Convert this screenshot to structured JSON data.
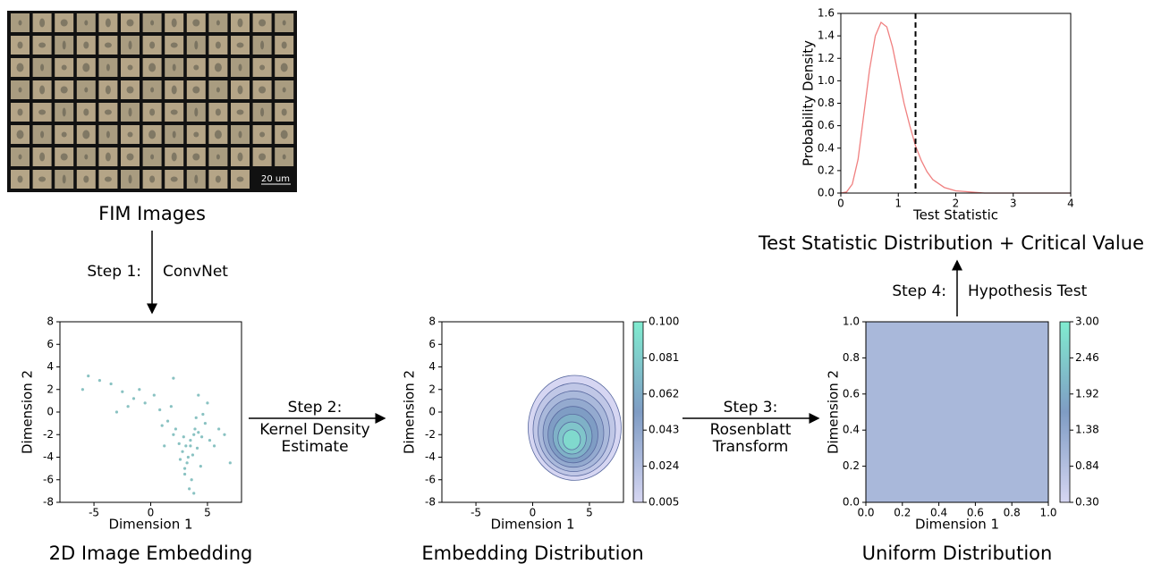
{
  "images": {
    "label": "FIM Images",
    "scale_bar": "20 um"
  },
  "steps": [
    {
      "label": "Step 1:",
      "method": [
        "ConvNet"
      ]
    },
    {
      "label": "Step 2:",
      "method": [
        "Kernel Density",
        "Estimate"
      ]
    },
    {
      "label": "Step 3:",
      "method": [
        "Rosenblatt",
        "Transform"
      ]
    },
    {
      "label": "Step 4:",
      "method": [
        "Hypothesis Test"
      ]
    }
  ],
  "chart_data": [
    {
      "type": "scatter",
      "title": "2D Image Embedding",
      "xlabel": "Dimension 1",
      "ylabel": "Dimension 2",
      "color": "#3a9a9a",
      "xlim": [
        -8,
        8
      ],
      "xticks": [
        -5,
        0,
        5
      ],
      "ylim": [
        -8,
        8
      ],
      "yticks": [
        -8,
        -6,
        -4,
        -2,
        0,
        2,
        4,
        6,
        8
      ],
      "x": [
        3.5,
        3.8,
        4.2,
        3.1,
        2.8,
        4.5,
        3.3,
        3.9,
        4.1,
        2.5,
        3.0,
        3.6,
        4.8,
        5.2,
        2.2,
        1.5,
        0.8,
        -0.5,
        -1.5,
        -2.5,
        -3.5,
        -4.5,
        -5.5,
        1.0,
        2.0,
        3.2,
        4.0,
        3.7,
        2.9,
        4.4,
        5.6,
        6.0,
        1.8,
        0.3,
        -1.0,
        -2.0,
        3.4,
        3.0,
        4.6,
        2.6,
        5.0,
        6.5,
        7.0,
        3.8,
        4.2,
        2.0,
        -3.0,
        -6.0,
        1.2,
        3.5
      ],
      "y": [
        -2.5,
        -2.0,
        -1.8,
        -3.0,
        -3.5,
        -2.2,
        -4.0,
        -1.5,
        -3.2,
        -2.8,
        -5.0,
        -6.0,
        -1.0,
        -2.5,
        -1.5,
        -0.8,
        0.2,
        0.8,
        1.2,
        1.8,
        2.5,
        2.8,
        3.2,
        -1.2,
        -2.0,
        -4.5,
        -0.5,
        -3.8,
        -2.2,
        -4.8,
        -3.0,
        -1.5,
        0.5,
        1.5,
        2.0,
        0.5,
        -6.8,
        -5.5,
        -0.2,
        -4.2,
        0.8,
        -2.0,
        -4.5,
        -7.2,
        1.5,
        3.0,
        0.0,
        2.0,
        -3.0,
        -3.0
      ]
    },
    {
      "type": "contour",
      "title": "Embedding Distribution",
      "xlabel": "Dimension 1",
      "ylabel": "Dimension 2",
      "xlim": [
        -8,
        8
      ],
      "xticks": [
        -5,
        0,
        5
      ],
      "ylim": [
        -8,
        8
      ],
      "yticks": [
        -8,
        -6,
        -4,
        -2,
        0,
        2,
        4,
        6,
        8
      ],
      "levels": [
        0.005,
        0.017,
        0.029,
        0.041,
        0.053,
        0.065,
        0.077,
        0.089
      ],
      "colorbar": {
        "lim": [
          0.005,
          0.1
        ],
        "ticks": [
          0.005,
          0.024,
          0.043,
          0.062,
          0.081,
          {
            "value": 0.1,
            "label": "0.100"
          }
        ],
        "colors": [
          "#d6d6f2",
          "#7f9cc4",
          "#80ecd0"
        ]
      }
    },
    {
      "type": "heatmap",
      "title": "Uniform Distribution",
      "xlabel": "Dimension 1",
      "ylabel": "Dimension 2",
      "xlim": [
        0,
        1
      ],
      "xticks": [
        {
          "value": 0,
          "label": "0.0"
        },
        0.2,
        0.4,
        0.6,
        0.8,
        {
          "value": 1,
          "label": "1.0"
        }
      ],
      "ylim": [
        0,
        1
      ],
      "yticks": [
        {
          "value": 0,
          "label": "0.0"
        },
        0.2,
        0.4,
        0.6,
        0.8,
        {
          "value": 1,
          "label": "1.0"
        }
      ],
      "density": 1,
      "colorbar": {
        "lim": [
          0.3,
          3
        ],
        "ticks": [
          {
            "value": 0.3,
            "label": "0.30"
          },
          0.84,
          1.38,
          1.92,
          2.46,
          {
            "value": 3,
            "label": "3.00"
          }
        ],
        "colors": [
          "#d6d6f2",
          "#7f9cc4",
          "#80ecd0"
        ]
      }
    },
    {
      "type": "line",
      "title": "Test Statistic Distribution + Critical Value",
      "xlabel": "Test Statistic",
      "ylabel": "Probability Density",
      "color": "#f08080",
      "xlim": [
        0,
        4
      ],
      "xticks": [
        0,
        1,
        2,
        3,
        4
      ],
      "ylim": [
        0,
        1.6
      ],
      "yticks": [
        {
          "value": 0,
          "label": "0.0"
        },
        0.2,
        0.4,
        0.6,
        0.8,
        {
          "value": 1,
          "label": "1.0"
        },
        1.2,
        1.4,
        1.6
      ],
      "x": [
        0,
        0.1,
        0.2,
        0.3,
        0.4,
        0.5,
        0.6,
        0.7,
        0.8,
        0.9,
        1.0,
        1.1,
        1.2,
        1.3,
        1.4,
        1.5,
        1.6,
        1.8,
        2.0,
        2.5,
        3,
        4
      ],
      "values": [
        0,
        0.01,
        0.08,
        0.3,
        0.7,
        1.1,
        1.4,
        1.52,
        1.48,
        1.3,
        1.05,
        0.8,
        0.6,
        0.42,
        0.29,
        0.19,
        0.12,
        0.05,
        0.02,
        0,
        0,
        0
      ],
      "critical_value": 1.3
    }
  ]
}
